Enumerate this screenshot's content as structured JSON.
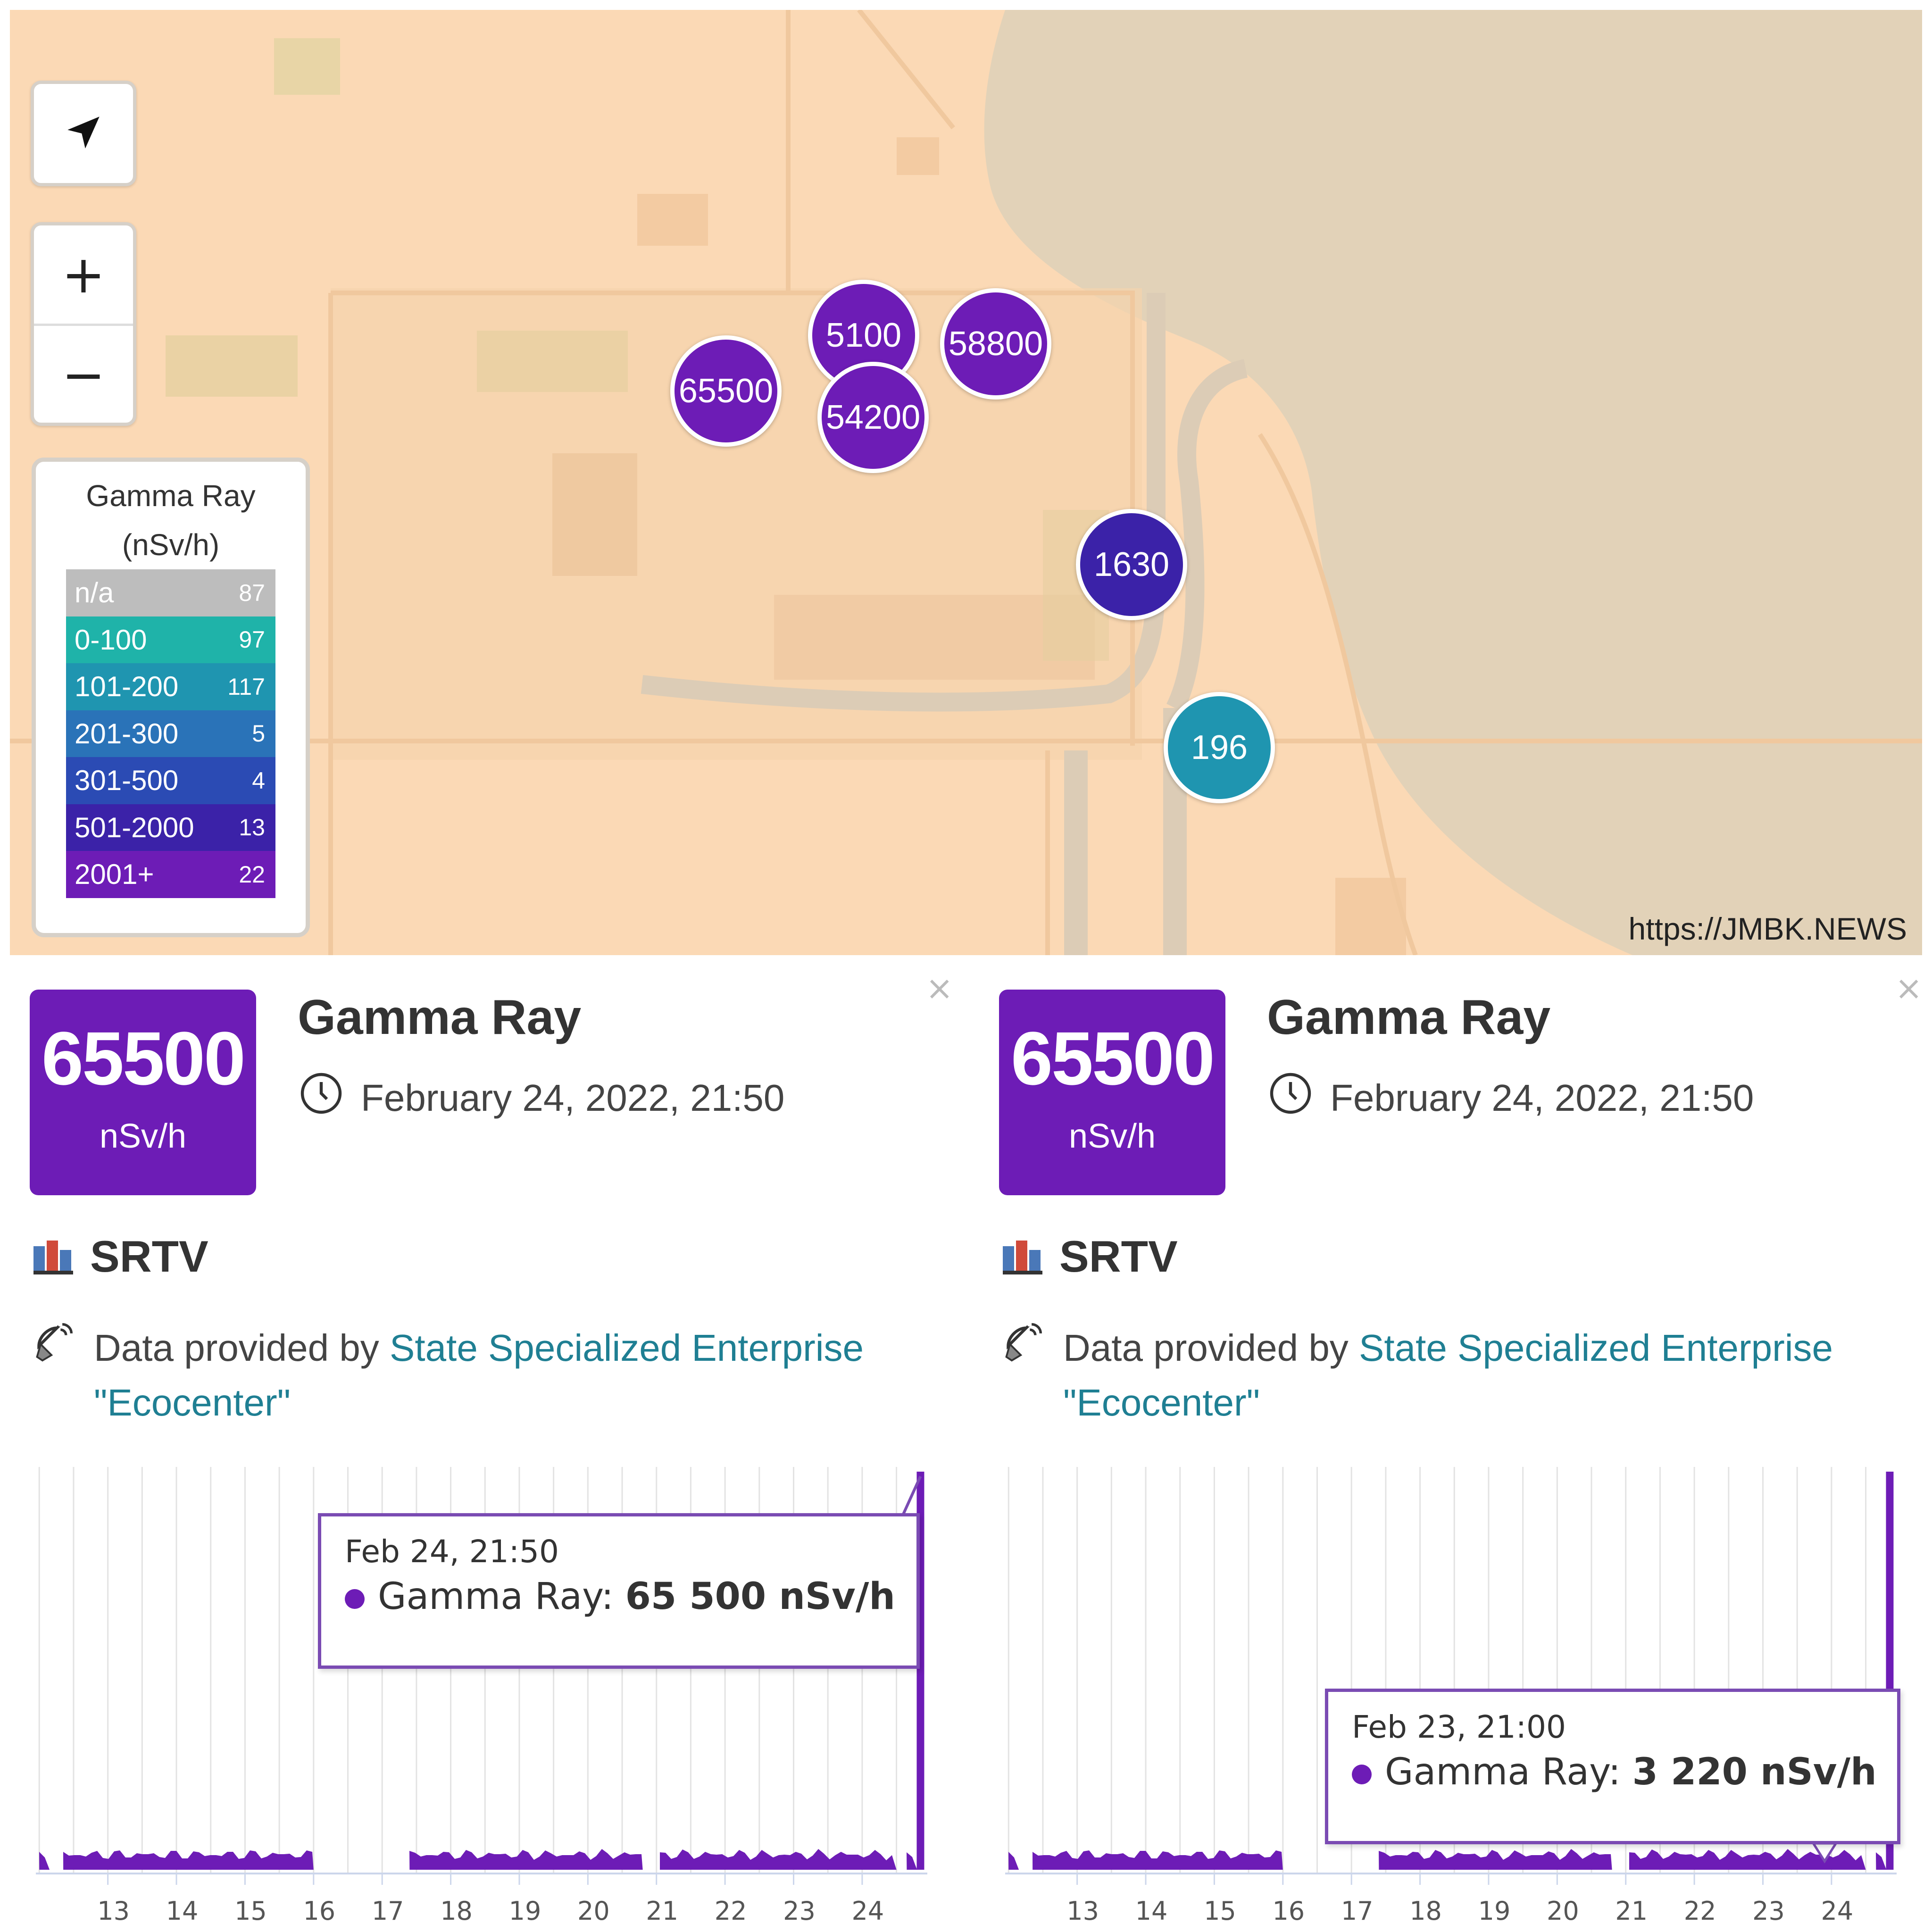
{
  "map": {
    "legend": {
      "title_line1": "Gamma Ray",
      "title_line2": "(nSv/h)",
      "rows": [
        {
          "range": "n/a",
          "count": "87",
          "color": "#bdbdbd"
        },
        {
          "range": "0-100",
          "count": "97",
          "color": "#1fb3a9"
        },
        {
          "range": "101-200",
          "count": "117",
          "color": "#1f95b0"
        },
        {
          "range": "201-300",
          "count": "5",
          "color": "#2a73b8"
        },
        {
          "range": "301-500",
          "count": "4",
          "color": "#2b4bb4"
        },
        {
          "range": "501-2000",
          "count": "13",
          "color": "#3b22a8"
        },
        {
          "range": "2001+",
          "count": "22",
          "color": "#6d1cb6"
        }
      ]
    },
    "markers": [
      {
        "value": "5100",
        "color": "#6d1cb6"
      },
      {
        "value": "58800",
        "color": "#6d1cb6"
      },
      {
        "value": "65500",
        "color": "#6d1cb6"
      },
      {
        "value": "54200",
        "color": "#6d1cb6"
      },
      {
        "value": "1630",
        "color": "#3b22a8"
      },
      {
        "value": "196",
        "color": "#1f95b0"
      }
    ],
    "controls": {
      "zoom_in": "+",
      "zoom_out": "−",
      "locate_icon": "navigation-arrow-icon"
    },
    "watermark": "https://JMBK.NEWS"
  },
  "panels": [
    {
      "badge_value": "65500",
      "badge_unit": "nSv/h",
      "badge_color": "#6d1cb6",
      "title": "Gamma Ray",
      "timestamp": "February 24, 2022, 21:50",
      "station": "SRTV",
      "provider_prefix": "Data provided by ",
      "provider_link": "State Specialized Enterprise \"Ecocenter\"",
      "close": "×",
      "tooltip": {
        "date": "Feb 24, 21:50",
        "series": "Gamma Ray",
        "value": "65 500 nSv/h"
      }
    },
    {
      "badge_value": "65500",
      "badge_unit": "nSv/h",
      "badge_color": "#6d1cb6",
      "title": "Gamma Ray",
      "timestamp": "February 24, 2022, 21:50",
      "station": "SRTV",
      "provider_prefix": "Data provided by ",
      "provider_link": "State Specialized Enterprise \"Ecocenter\"",
      "close": "×",
      "tooltip": {
        "date": "Feb 23, 21:00",
        "series": "Gamma Ray",
        "value": "3 220 nSv/h"
      }
    }
  ],
  "chart_data": [
    {
      "type": "area",
      "title": "",
      "series": [
        {
          "name": "Gamma Ray",
          "color": "#6d1cb6"
        }
      ],
      "x_ticks": [
        "13",
        "14",
        "15",
        "16",
        "17",
        "18",
        "19",
        "20",
        "21",
        "22",
        "23",
        "24"
      ],
      "data_gaps": [
        [
          "16",
          "17"
        ]
      ],
      "baseline_level": "low (near zero)",
      "final_point": {
        "x": "Feb 24, 21:50",
        "y": 65500
      },
      "highlighted_point": {
        "x": "Feb 24, 21:50",
        "y": 65500
      },
      "grid": true
    },
    {
      "type": "area",
      "title": "",
      "series": [
        {
          "name": "Gamma Ray",
          "color": "#6d1cb6"
        }
      ],
      "x_ticks": [
        "13",
        "14",
        "15",
        "16",
        "17",
        "18",
        "19",
        "20",
        "21",
        "22",
        "23",
        "24"
      ],
      "data_gaps": [
        [
          "16",
          "17"
        ]
      ],
      "baseline_level": "low (near zero)",
      "final_point": {
        "x": "Feb 24, 21:50",
        "y": 65500
      },
      "highlighted_point": {
        "x": "Feb 23, 21:00",
        "y": 3220
      },
      "grid": true
    }
  ]
}
